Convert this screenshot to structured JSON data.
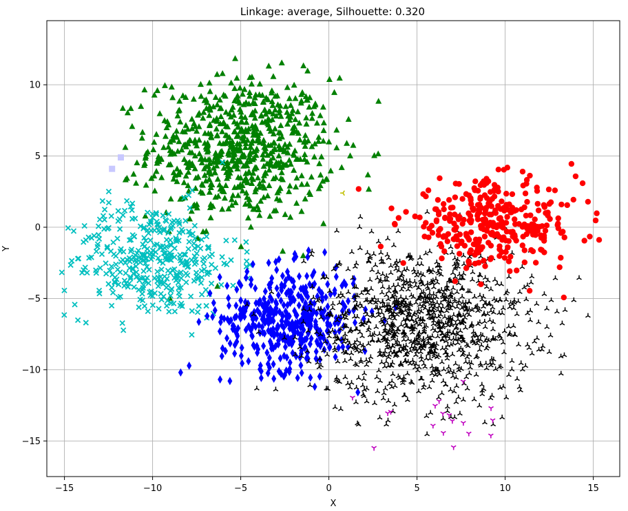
{
  "chart_data": {
    "type": "scatter",
    "title": "Linkage: average, Silhouette: 0.320",
    "xlabel": "X",
    "ylabel": "Y",
    "xlim": [
      -16,
      16.5
    ],
    "ylim": [
      -17.5,
      14.5
    ],
    "xticks": [
      -15,
      -10,
      -5,
      0,
      5,
      10,
      15
    ],
    "yticks": [
      -15,
      -10,
      -5,
      0,
      5,
      10
    ],
    "xtick_labels": [
      "−15",
      "−10",
      "−5",
      "0",
      "5",
      "10",
      "15"
    ],
    "ytick_labels": [
      "−15",
      "−10",
      "−5",
      "0",
      "5",
      "10"
    ],
    "grid": true,
    "legend": "none",
    "clusters": [
      {
        "color": "#008000",
        "marker": "triangle",
        "center": [
          -5.0,
          5.5
        ],
        "spread": [
          2.6,
          2.5
        ],
        "count": 700
      },
      {
        "color": "#00bfbf",
        "marker": "x",
        "center": [
          -10.0,
          -2.3
        ],
        "spread": [
          2.4,
          2.0
        ],
        "count": 400
      },
      {
        "color": "#0000ff",
        "marker": "diamond",
        "center": [
          -2.3,
          -6.4
        ],
        "spread": [
          1.9,
          1.8
        ],
        "count": 450
      },
      {
        "color": "#000000",
        "marker": "tri",
        "center": [
          5.3,
          -6.7
        ],
        "spread": [
          3.1,
          2.7
        ],
        "count": 1100
      },
      {
        "color": "#ff0000",
        "marker": "circle",
        "center": [
          9.2,
          0.2
        ],
        "spread": [
          2.5,
          1.5
        ],
        "count": 330
      },
      {
        "color": "#bf00bf",
        "marker": "tri_down",
        "center": [
          6.5,
          -13.8
        ],
        "spread": [
          3.0,
          1.0
        ],
        "count": 18
      },
      {
        "color": "#c8c8ff",
        "marker": "square",
        "points": [
          [
            -12.3,
            4.1
          ],
          [
            -11.8,
            4.9
          ]
        ]
      },
      {
        "color": "#bfbf00",
        "marker": "tri_left",
        "points": [
          [
            0.8,
            2.4
          ]
        ]
      }
    ]
  }
}
